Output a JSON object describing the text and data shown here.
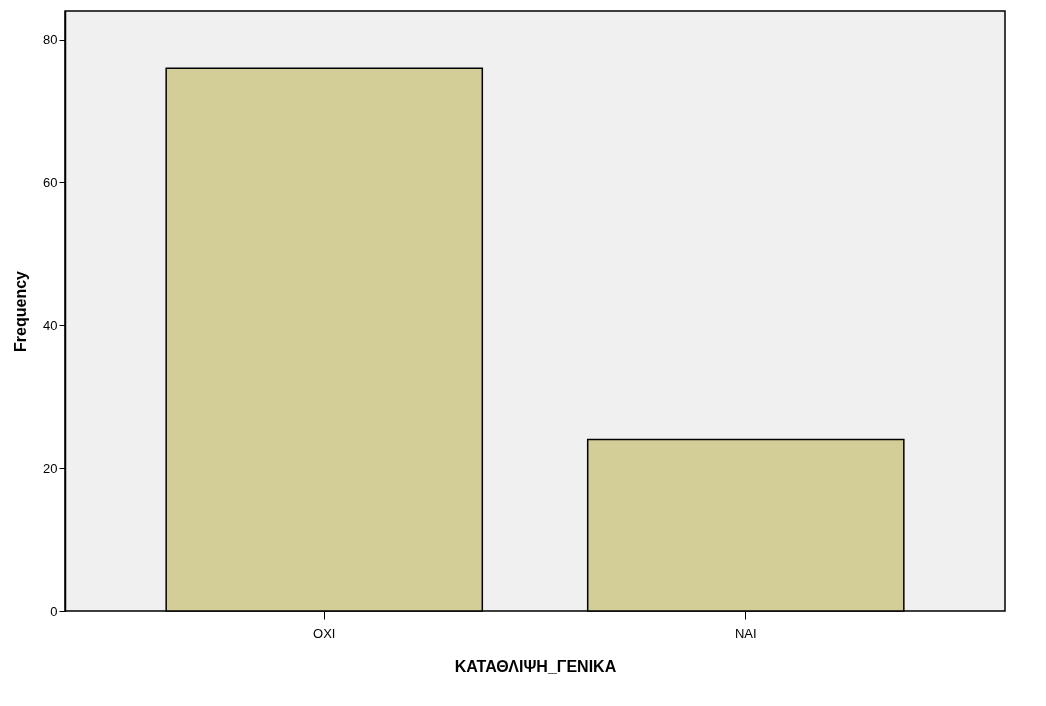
{
  "chart_data": {
    "type": "bar",
    "xlabel": "ΚΑΤΑΘΛΙΨΗ_ΓΕΝΙΚΑ",
    "ylabel": "Frequency",
    "categories": [
      "ΟΧΙ",
      "ΝΑΙ"
    ],
    "values": [
      76,
      24
    ],
    "color": "#d3ce97",
    "ylim": [
      0,
      84
    ],
    "yticks": [
      0,
      20,
      40,
      60,
      80
    ],
    "grid": false
  }
}
